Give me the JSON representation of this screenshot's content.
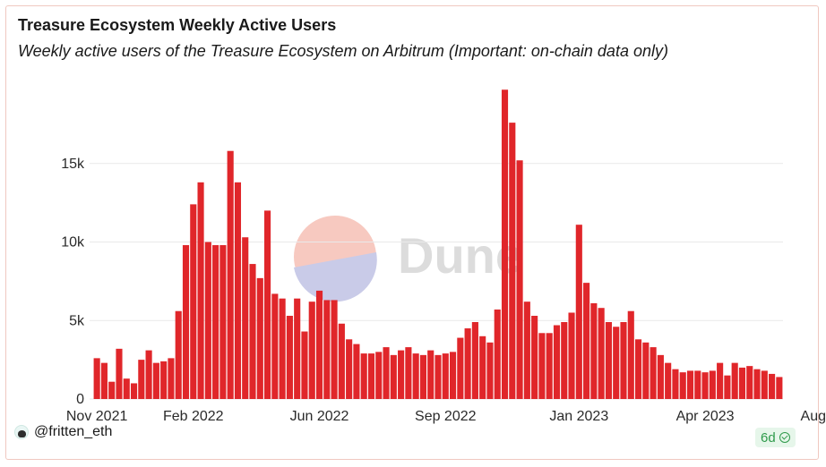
{
  "title": "Treasure Ecosystem Weekly Active Users",
  "subtitle": "Weekly active users of the Treasure Ecosystem on Arbitrum (Important: on-chain data only)",
  "watermark": "Dune",
  "footer": {
    "user": "@fritten_eth",
    "age_badge": "6d"
  },
  "colors": {
    "bar": "#e0262a",
    "grid": "#e9e9e9",
    "watermark_red": "#f7c9c0",
    "watermark_blue": "#c9cbe8",
    "watermark_text": "#dcdcdc"
  },
  "chart_data": {
    "type": "bar",
    "title": "Treasure Ecosystem Weekly Active Users",
    "xlabel": "",
    "ylabel": "",
    "ylim": [
      0,
      20000
    ],
    "grid": true,
    "y_ticks": [
      {
        "value": 0,
        "label": "0"
      },
      {
        "value": 5000,
        "label": "5k"
      },
      {
        "value": 10000,
        "label": "10k"
      },
      {
        "value": 15000,
        "label": "15k"
      }
    ],
    "x_ticks": [
      {
        "index": 0,
        "label": "Nov 2021"
      },
      {
        "index": 13,
        "label": "Feb 2022"
      },
      {
        "index": 30,
        "label": "Jun 2022"
      },
      {
        "index": 47,
        "label": "Sep 2022"
      },
      {
        "index": 65,
        "label": "Jan 2023"
      },
      {
        "index": 82,
        "label": "Apr 2023"
      },
      {
        "index": 99,
        "label": "Aug 2023"
      }
    ],
    "values": [
      2600,
      2300,
      1100,
      3200,
      1300,
      1000,
      2500,
      3100,
      2300,
      2400,
      2600,
      5600,
      9800,
      12400,
      13800,
      10000,
      9800,
      9800,
      15800,
      13800,
      10300,
      8600,
      7700,
      12000,
      6700,
      6400,
      5300,
      6400,
      4300,
      6200,
      6900,
      6300,
      6300,
      4800,
      3800,
      3500,
      2900,
      2900,
      3000,
      3300,
      2800,
      3100,
      3300,
      2900,
      2800,
      3100,
      2800,
      2900,
      3000,
      3900,
      4500,
      4900,
      4000,
      3600,
      5700,
      19700,
      17600,
      15200,
      6200,
      5300,
      4200,
      4200,
      4700,
      4900,
      5500,
      11100,
      7400,
      6100,
      5800,
      4900,
      4600,
      4900,
      5600,
      3800,
      3600,
      3300,
      2800,
      2300,
      1900,
      1700,
      1800,
      1800,
      1700,
      1800,
      2300,
      1500,
      2300,
      2000,
      2100,
      1900,
      1800,
      1600,
      1400
    ]
  }
}
